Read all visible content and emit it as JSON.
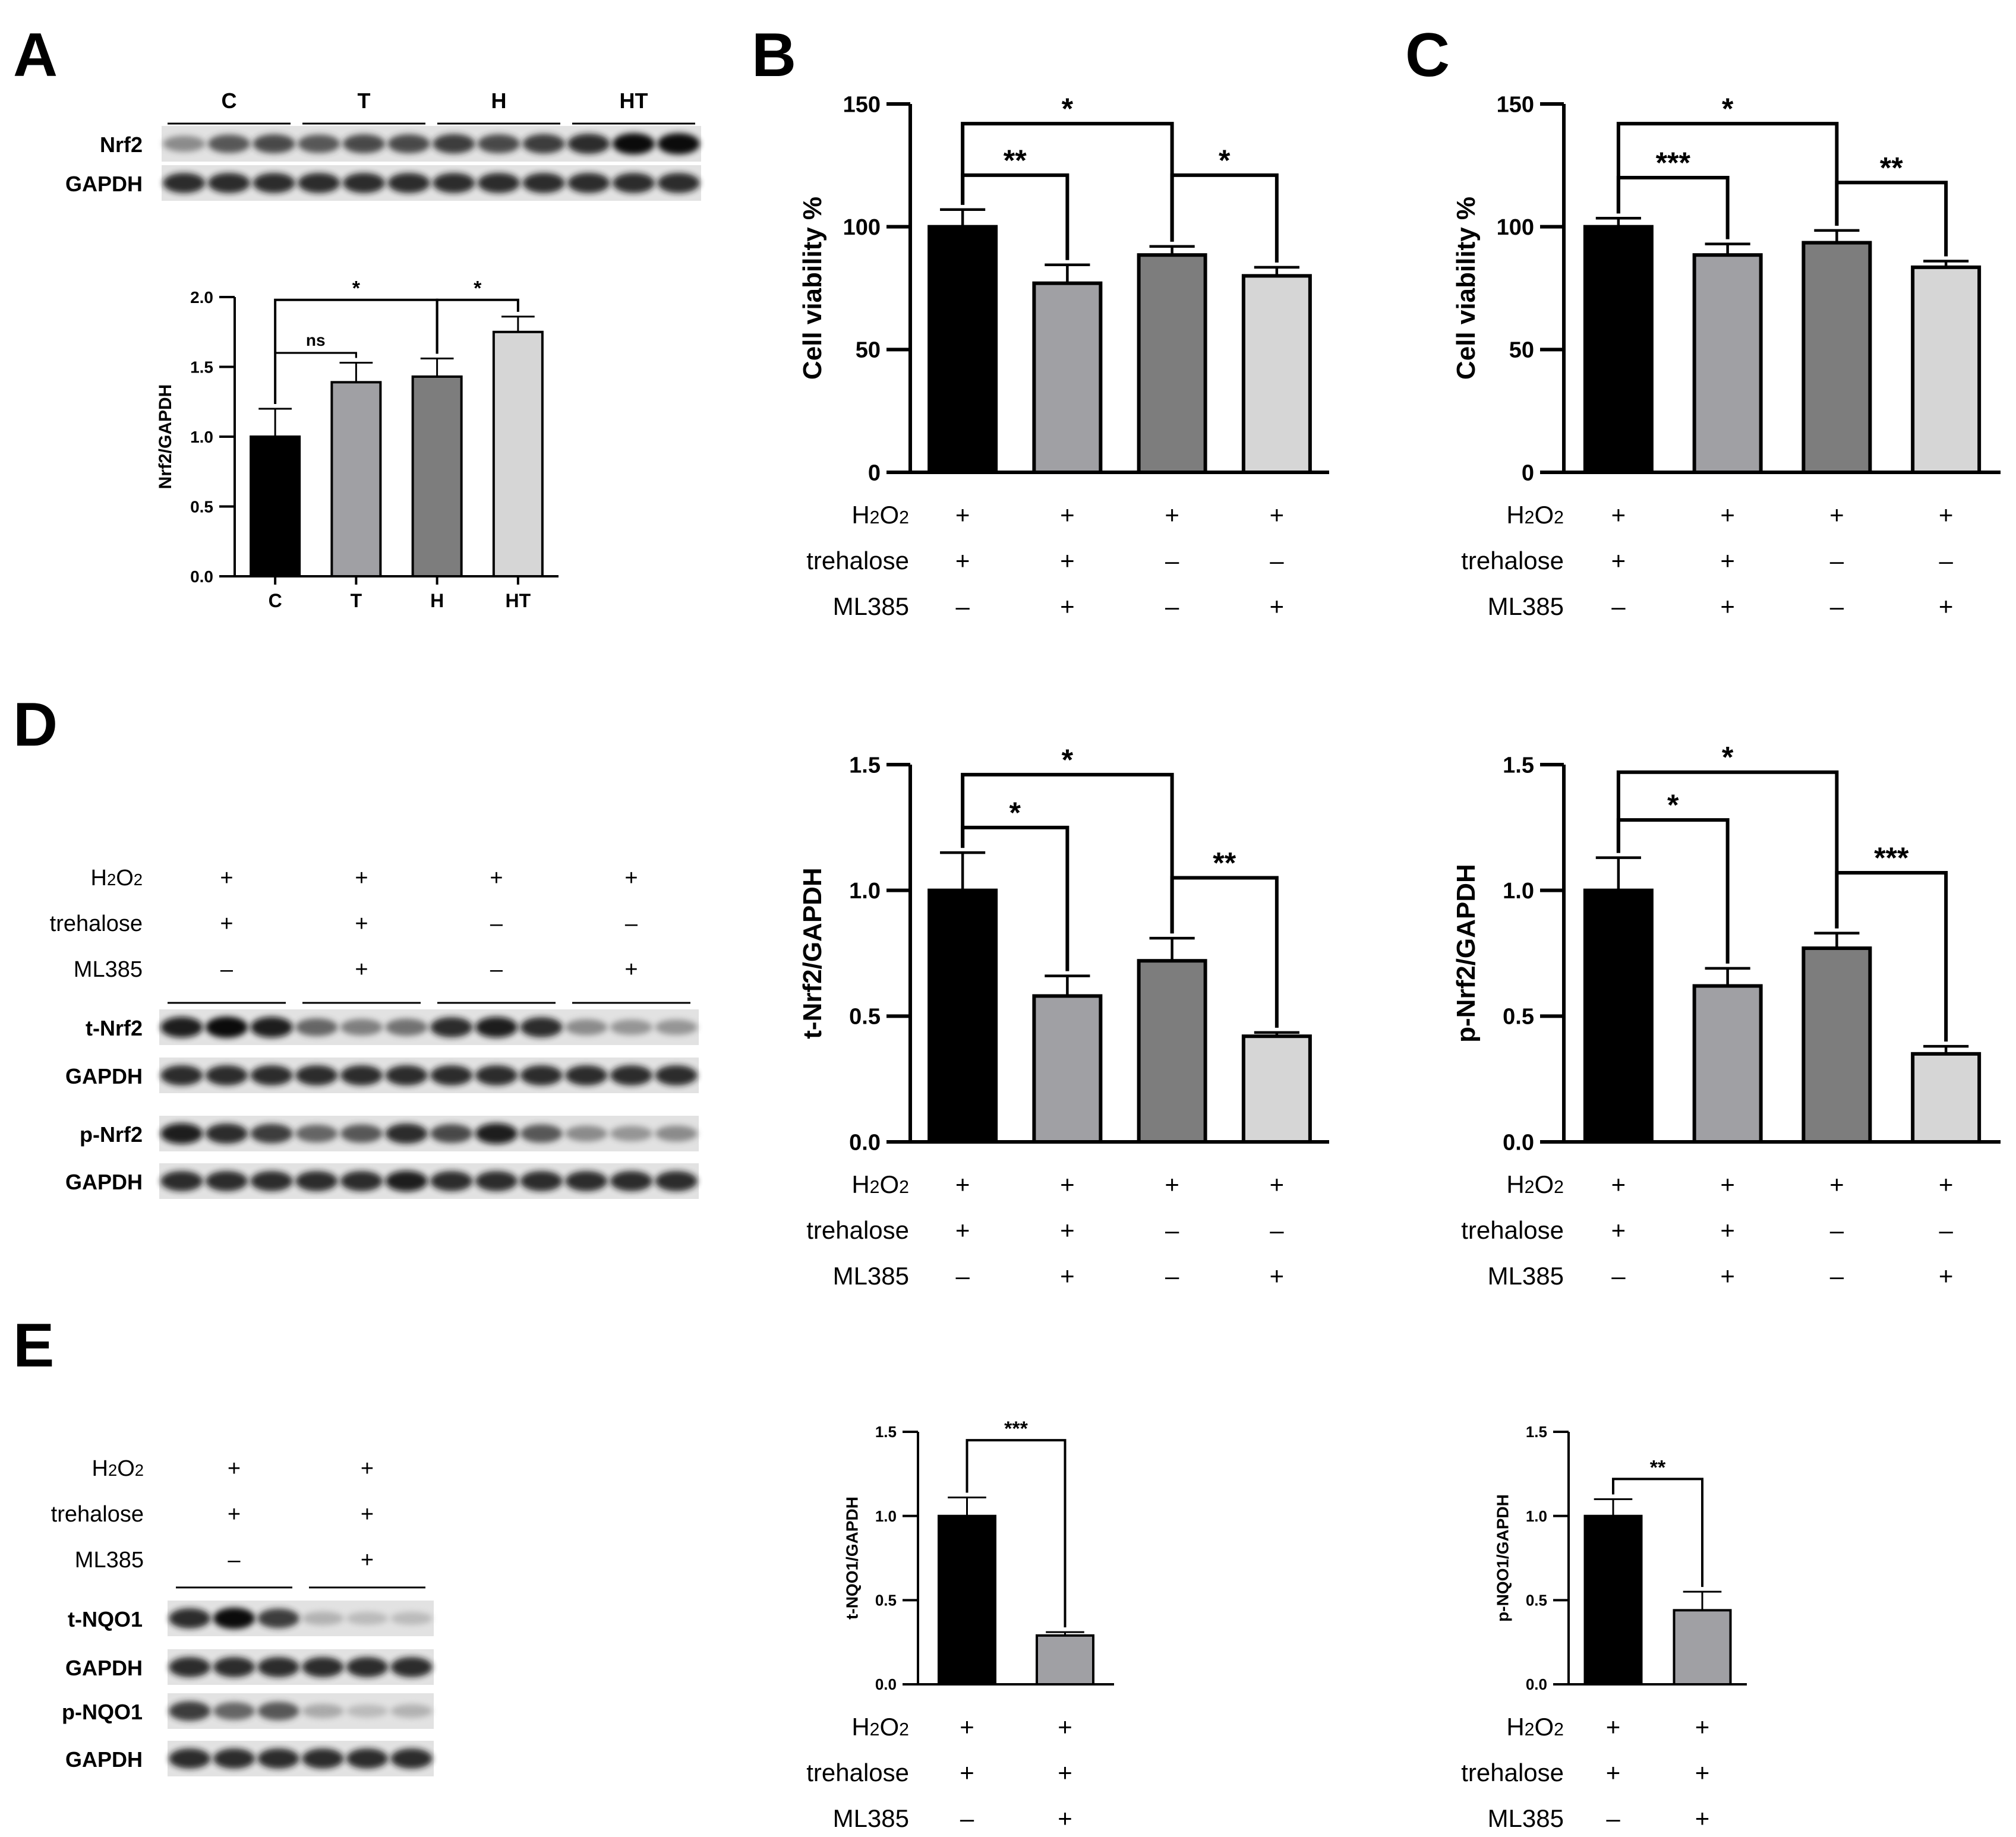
{
  "panels": {
    "A": "A",
    "B": "B",
    "C": "C",
    "D": "D",
    "E": "E"
  },
  "blot_a": {
    "groups": [
      "C",
      "T",
      "H",
      "HT"
    ],
    "rows": [
      {
        "label": "Nrf2",
        "intensity": [
          0.55,
          0.75,
          0.8,
          0.75,
          0.8,
          0.8,
          0.85,
          0.8,
          0.85,
          0.9,
          1.0,
          1.0
        ]
      },
      {
        "label": "GAPDH",
        "intensity": [
          0.9,
          0.9,
          0.9,
          0.9,
          0.9,
          0.9,
          0.9,
          0.9,
          0.9,
          0.9,
          0.9,
          0.9
        ]
      }
    ]
  },
  "blot_d": {
    "conditions": [
      {
        "label": "H2O2",
        "values": [
          "+",
          "+",
          "+",
          "+"
        ]
      },
      {
        "label": "trehalose",
        "values": [
          "+",
          "+",
          "–",
          "–"
        ]
      },
      {
        "label": "ML385",
        "values": [
          "–",
          "+",
          "–",
          "+"
        ]
      }
    ],
    "rows": [
      {
        "label": "t-Nrf2",
        "intensity": [
          0.95,
          1.0,
          0.95,
          0.7,
          0.6,
          0.65,
          0.9,
          0.95,
          0.9,
          0.55,
          0.5,
          0.5
        ]
      },
      {
        "label": "GAPDH",
        "intensity": [
          0.9,
          0.9,
          0.9,
          0.9,
          0.9,
          0.9,
          0.9,
          0.9,
          0.9,
          0.9,
          0.9,
          0.9
        ]
      },
      {
        "label": "p-Nrf2",
        "intensity": [
          0.95,
          0.9,
          0.85,
          0.7,
          0.75,
          0.9,
          0.8,
          0.95,
          0.75,
          0.55,
          0.5,
          0.55
        ]
      },
      {
        "label": "GAPDH",
        "intensity": [
          0.9,
          0.9,
          0.9,
          0.9,
          0.9,
          0.95,
          0.9,
          0.9,
          0.9,
          0.9,
          0.9,
          0.9
        ]
      }
    ]
  },
  "blot_e": {
    "conditions": [
      {
        "label": "H2O2",
        "values": [
          "+",
          "+"
        ]
      },
      {
        "label": "trehalose",
        "values": [
          "+",
          "+"
        ]
      },
      {
        "label": "ML385",
        "values": [
          "–",
          "+"
        ]
      }
    ],
    "rows": [
      {
        "label": "t-NQO1",
        "intensity": [
          0.9,
          1.0,
          0.85,
          0.35,
          0.3,
          0.3
        ]
      },
      {
        "label": "GAPDH",
        "intensity": [
          0.9,
          0.9,
          0.9,
          0.9,
          0.9,
          0.9
        ]
      },
      {
        "label": "p-NQO1",
        "intensity": [
          0.85,
          0.7,
          0.75,
          0.4,
          0.3,
          0.35
        ]
      },
      {
        "label": "GAPDH",
        "intensity": [
          0.9,
          0.9,
          0.9,
          0.9,
          0.9,
          0.9
        ]
      }
    ]
  },
  "chart_data": [
    {
      "id": "A",
      "type": "bar",
      "ylabel": "Nrf2/GAPDH",
      "ylim": [
        0,
        2.0
      ],
      "yticks": [
        "0.0",
        "0.5",
        "1.0",
        "1.5",
        "2.0"
      ],
      "ytick_values": [
        0,
        0.5,
        1.0,
        1.5,
        2.0
      ],
      "categories": [
        "C",
        "T",
        "H",
        "HT"
      ],
      "values": [
        1.0,
        1.39,
        1.43,
        1.75
      ],
      "errors": [
        0.2,
        0.14,
        0.13,
        0.11
      ],
      "colors": [
        "#000000",
        "#a0a0a4",
        "#7d7d7d",
        "#d6d6d6"
      ],
      "sig": [
        {
          "from": 0,
          "to": 1,
          "label": "ns",
          "level": 1.6,
          "tier": 0
        },
        {
          "from": 0,
          "to": 2,
          "label": "*",
          "level": 1.98,
          "tier": 1
        },
        {
          "from": 2,
          "to": 3,
          "label": "*",
          "level": 1.98,
          "tier": 1
        }
      ]
    },
    {
      "id": "B",
      "type": "bar",
      "ylabel": "Cell viability %",
      "ylim": [
        0,
        150
      ],
      "yticks": [
        "0",
        "50",
        "100",
        "150"
      ],
      "ytick_values": [
        0,
        50,
        100,
        150
      ],
      "categories": [
        "",
        "",
        "",
        ""
      ],
      "values": [
        100,
        77,
        88.5,
        80
      ],
      "errors": [
        7,
        7.5,
        3.5,
        3.5
      ],
      "colors": [
        "#000000",
        "#a0a0a4",
        "#7d7d7d",
        "#d6d6d6"
      ],
      "conditions": [
        {
          "label": "H2O2",
          "values": [
            "+",
            "+",
            "+",
            "+"
          ]
        },
        {
          "label": "trehalose",
          "values": [
            "+",
            "+",
            "–",
            "–"
          ]
        },
        {
          "label": "ML385",
          "values": [
            "–",
            "+",
            "–",
            "+"
          ]
        }
      ],
      "sig": [
        {
          "from": 0,
          "to": 1,
          "label": "**",
          "level": 121,
          "tier": 0
        },
        {
          "from": 0,
          "to": 2,
          "label": "*",
          "level": 142,
          "tier": 1
        },
        {
          "from": 2,
          "to": 3,
          "label": "*",
          "level": 121,
          "tier": 0
        }
      ]
    },
    {
      "id": "C",
      "type": "bar",
      "ylabel": "Cell viability %",
      "ylim": [
        0,
        150
      ],
      "yticks": [
        "0",
        "50",
        "100",
        "150"
      ],
      "ytick_values": [
        0,
        50,
        100,
        150
      ],
      "categories": [
        "",
        "",
        "",
        ""
      ],
      "values": [
        100,
        88.5,
        93.5,
        83.5
      ],
      "errors": [
        3.5,
        4.5,
        5,
        2.5
      ],
      "colors": [
        "#000000",
        "#a0a0a4",
        "#7d7d7d",
        "#d6d6d6"
      ],
      "conditions": [
        {
          "label": "H2O2",
          "values": [
            "+",
            "+",
            "+",
            "+"
          ]
        },
        {
          "label": "trehalose",
          "values": [
            "+",
            "+",
            "–",
            "–"
          ]
        },
        {
          "label": "ML385",
          "values": [
            "–",
            "+",
            "–",
            "+"
          ]
        }
      ],
      "sig": [
        {
          "from": 0,
          "to": 1,
          "label": "***",
          "level": 120,
          "tier": 0
        },
        {
          "from": 0,
          "to": 2,
          "label": "*",
          "level": 142,
          "tier": 1
        },
        {
          "from": 2,
          "to": 3,
          "label": "**",
          "level": 118,
          "tier": 0
        }
      ]
    },
    {
      "id": "D1",
      "type": "bar",
      "ylabel": "t-Nrf2/GAPDH",
      "ylim": [
        0,
        1.5
      ],
      "yticks": [
        "0.0",
        "0.5",
        "1.0",
        "1.5"
      ],
      "ytick_values": [
        0,
        0.5,
        1.0,
        1.5
      ],
      "categories": [
        "",
        "",
        "",
        ""
      ],
      "values": [
        1.0,
        0.58,
        0.72,
        0.42
      ],
      "errors": [
        0.15,
        0.08,
        0.09,
        0.015
      ],
      "colors": [
        "#000000",
        "#a0a0a4",
        "#7d7d7d",
        "#d6d6d6"
      ],
      "conditions": [
        {
          "label": "H2O2",
          "values": [
            "+",
            "+",
            "+",
            "+"
          ]
        },
        {
          "label": "trehalose",
          "values": [
            "+",
            "+",
            "–",
            "–"
          ]
        },
        {
          "label": "ML385",
          "values": [
            "–",
            "+",
            "–",
            "+"
          ]
        }
      ],
      "sig": [
        {
          "from": 0,
          "to": 1,
          "label": "*",
          "level": 1.25,
          "tier": 0
        },
        {
          "from": 0,
          "to": 2,
          "label": "*",
          "level": 1.46,
          "tier": 1
        },
        {
          "from": 2,
          "to": 3,
          "label": "**",
          "level": 1.05,
          "tier": 0
        }
      ]
    },
    {
      "id": "D2",
      "type": "bar",
      "ylabel": "p-Nrf2/GAPDH",
      "ylim": [
        0,
        1.5
      ],
      "yticks": [
        "0.0",
        "0.5",
        "1.0",
        "1.5"
      ],
      "ytick_values": [
        0,
        0.5,
        1.0,
        1.5
      ],
      "categories": [
        "",
        "",
        "",
        ""
      ],
      "values": [
        1.0,
        0.62,
        0.77,
        0.35
      ],
      "errors": [
        0.13,
        0.07,
        0.06,
        0.03
      ],
      "colors": [
        "#000000",
        "#a0a0a4",
        "#7d7d7d",
        "#d6d6d6"
      ],
      "conditions": [
        {
          "label": "H2O2",
          "values": [
            "+",
            "+",
            "+",
            "+"
          ]
        },
        {
          "label": "trehalose",
          "values": [
            "+",
            "+",
            "–",
            "–"
          ]
        },
        {
          "label": "ML385",
          "values": [
            "–",
            "+",
            "–",
            "+"
          ]
        }
      ],
      "sig": [
        {
          "from": 0,
          "to": 1,
          "label": "*",
          "level": 1.28,
          "tier": 0
        },
        {
          "from": 0,
          "to": 2,
          "label": "*",
          "level": 1.47,
          "tier": 1
        },
        {
          "from": 2,
          "to": 3,
          "label": "***",
          "level": 1.07,
          "tier": 0
        }
      ]
    },
    {
      "id": "E1",
      "type": "bar",
      "ylabel": "t-NQO1/GAPDH",
      "ylim": [
        0,
        1.5
      ],
      "yticks": [
        "0.0",
        "0.5",
        "1.0",
        "1.5"
      ],
      "ytick_values": [
        0,
        0.5,
        1.0,
        1.5
      ],
      "categories": [
        "",
        ""
      ],
      "values": [
        1.0,
        0.29
      ],
      "errors": [
        0.11,
        0.02
      ],
      "colors": [
        "#000000",
        "#a0a0a4"
      ],
      "conditions": [
        {
          "label": "H2O2",
          "values": [
            "+",
            "+"
          ]
        },
        {
          "label": "trehalose",
          "values": [
            "+",
            "+"
          ]
        },
        {
          "label": "ML385",
          "values": [
            "–",
            "+"
          ]
        }
      ],
      "sig": [
        {
          "from": 0,
          "to": 1,
          "label": "***",
          "level": 1.45,
          "tier": 0
        }
      ]
    },
    {
      "id": "E2",
      "type": "bar",
      "ylabel": "p-NQO1/GAPDH",
      "ylim": [
        0,
        1.5
      ],
      "yticks": [
        "0.0",
        "0.5",
        "1.0",
        "1.5"
      ],
      "ytick_values": [
        0,
        0.5,
        1.0,
        1.5
      ],
      "categories": [
        "",
        ""
      ],
      "values": [
        1.0,
        0.44
      ],
      "errors": [
        0.1,
        0.11
      ],
      "colors": [
        "#000000",
        "#a0a0a4"
      ],
      "conditions": [
        {
          "label": "H2O2",
          "values": [
            "+",
            "+"
          ]
        },
        {
          "label": "trehalose",
          "values": [
            "+",
            "+"
          ]
        },
        {
          "label": "ML385",
          "values": [
            "–",
            "+"
          ]
        }
      ],
      "sig": [
        {
          "from": 0,
          "to": 1,
          "label": "**",
          "level": 1.22,
          "tier": 0
        }
      ]
    }
  ]
}
